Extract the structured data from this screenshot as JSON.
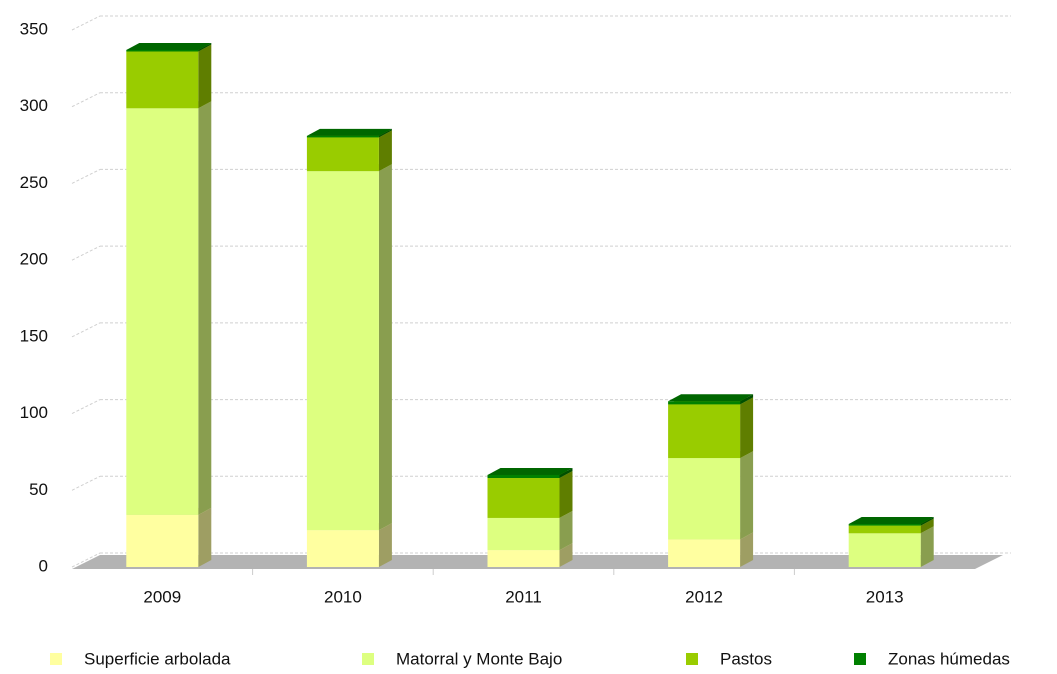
{
  "chart_data": {
    "type": "bar3d_stacked",
    "categories": [
      "2009",
      "2010",
      "2011",
      "2012",
      "2013"
    ],
    "series": [
      {
        "name": "Superficie arbolada",
        "color": "#ffffa0",
        "values": [
          34,
          24,
          11,
          18,
          0
        ]
      },
      {
        "name": "Matorral y Monte Bajo",
        "color": "#ddff80",
        "values": [
          265,
          234,
          21,
          53,
          22
        ]
      },
      {
        "name": "Pastos",
        "color": "#99cc00",
        "values": [
          37,
          22,
          26,
          35,
          5
        ]
      },
      {
        "name": "Zonas húmedas",
        "color": "#008000",
        "values": [
          1,
          1,
          2,
          2,
          1
        ]
      }
    ],
    "ylim": [
      0,
      350
    ],
    "yticks": [
      0,
      50,
      100,
      150,
      200,
      250,
      300,
      350
    ],
    "grid": true
  }
}
